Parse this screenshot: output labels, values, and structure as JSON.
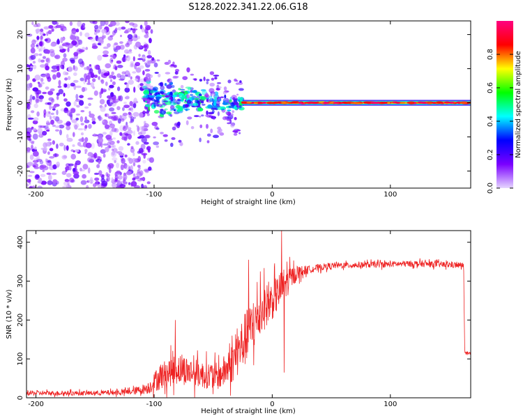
{
  "title": "S128.2022.341.22.06.G18",
  "colors": {
    "snr_line": "#ee2222",
    "axis": "#000000",
    "background": "#ffffff"
  },
  "chart_data": [
    {
      "type": "heatmap",
      "xlabel": "Height of straight line (km)",
      "ylabel": "Frequency (Hz)",
      "xlim": [
        -208,
        168
      ],
      "ylim": [
        -25,
        24
      ],
      "xticks": [
        -200,
        -100,
        0,
        100
      ],
      "yticks": [
        -20,
        -10,
        0,
        10,
        20
      ],
      "colorbar": {
        "label": "Normalized spectral amplitude",
        "range": [
          0.0,
          1.0
        ],
        "ticks": [
          0.0,
          0.2,
          0.4,
          0.6,
          0.8
        ],
        "tick_labels": [
          "0.0",
          "0.2",
          "0.4",
          "0.6",
          "0.8"
        ],
        "stops": [
          "#e6d6ff",
          "#7a00ff",
          "#0000ff",
          "#00ffff",
          "#00ff00",
          "#ffff00",
          "#ff0000",
          "#ff0080"
        ]
      },
      "regions": [
        {
          "name": "noise",
          "x_range": [
            -208,
            -108
          ],
          "f_range": [
            -25,
            24
          ],
          "amplitude": 0.08
        },
        {
          "name": "transition",
          "x_range": [
            -108,
            -25
          ],
          "f_range_start": [
            -8,
            10
          ],
          "f_range_end": [
            -4,
            3
          ],
          "amplitude": 0.25
        },
        {
          "name": "carrier",
          "x_range": [
            -25,
            168
          ],
          "frequency": 0,
          "amplitude": 0.9
        }
      ]
    },
    {
      "type": "line",
      "xlabel": "Height of straight line (km)",
      "ylabel": "SNR (10 * v/v)",
      "xlim": [
        -208,
        168
      ],
      "ylim": [
        0,
        430
      ],
      "xticks": [
        -200,
        -100,
        0,
        100
      ],
      "yticks": [
        0,
        100,
        200,
        300,
        400
      ],
      "envelope": {
        "x": [
          -208,
          -150,
          -120,
          -105,
          -95,
          -80,
          -60,
          -45,
          -35,
          -25,
          -15,
          -8,
          0,
          10,
          20,
          30,
          50,
          80,
          120,
          150,
          162,
          163,
          168
        ],
        "snr": [
          12,
          12,
          15,
          25,
          55,
          75,
          60,
          55,
          85,
          140,
          190,
          230,
          250,
          290,
          320,
          330,
          340,
          342,
          345,
          342,
          340,
          115,
          112
        ],
        "noise_amp": [
          6,
          6,
          8,
          15,
          35,
          40,
          35,
          35,
          50,
          70,
          70,
          60,
          50,
          45,
          20,
          10,
          8,
          8,
          8,
          8,
          8,
          5,
          5
        ]
      },
      "spikes": [
        {
          "x": -82,
          "snr": 200
        },
        {
          "x": -20,
          "snr": 355
        },
        {
          "x": -10,
          "snr": 325
        },
        {
          "x": 8,
          "snr": 430
        },
        {
          "x": 10,
          "snr": 65
        }
      ]
    }
  ]
}
